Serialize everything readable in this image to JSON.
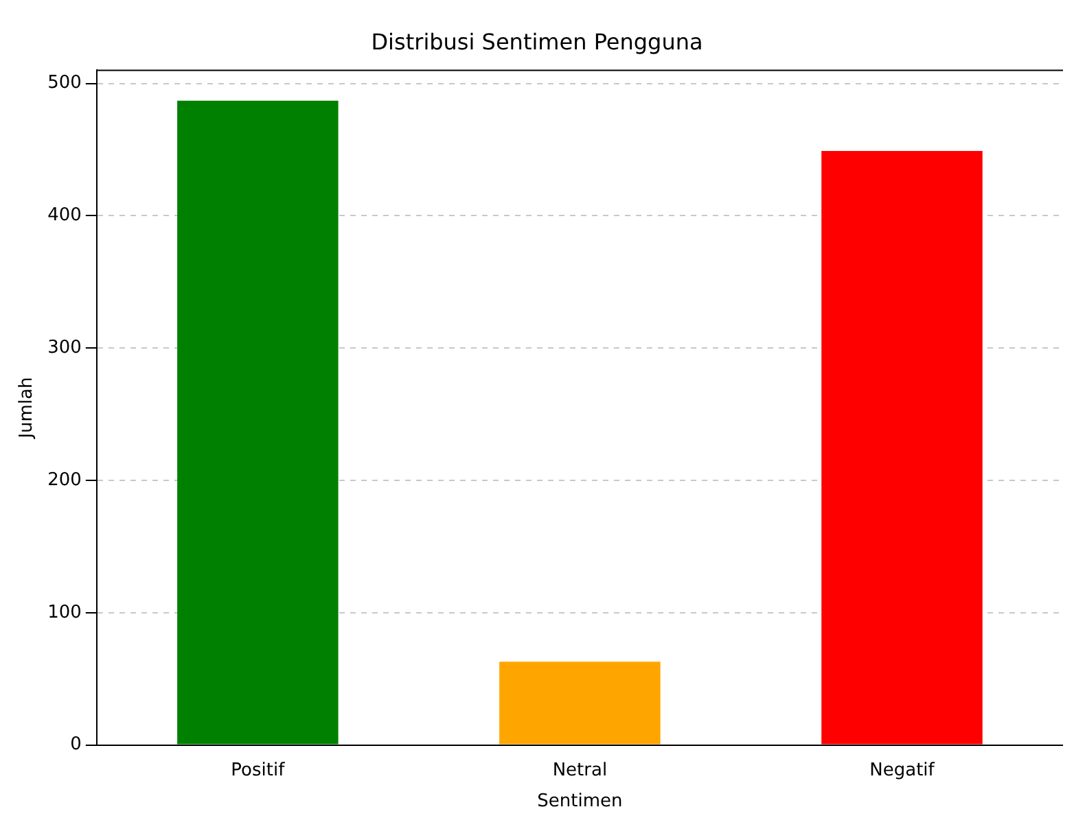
{
  "chart_data": {
    "type": "bar",
    "title": "Distribusi Sentimen Pengguna",
    "xlabel": "Sentimen",
    "ylabel": "Jumlah",
    "categories": [
      "Positif",
      "Netral",
      "Negatif"
    ],
    "values": [
      487,
      63,
      449
    ],
    "colors": [
      "#008000",
      "#ffa500",
      "#ff0000"
    ],
    "ylim": [
      0,
      510
    ],
    "yticks": [
      0,
      100,
      200,
      300,
      400,
      500
    ],
    "grid": "y",
    "legend": false
  }
}
